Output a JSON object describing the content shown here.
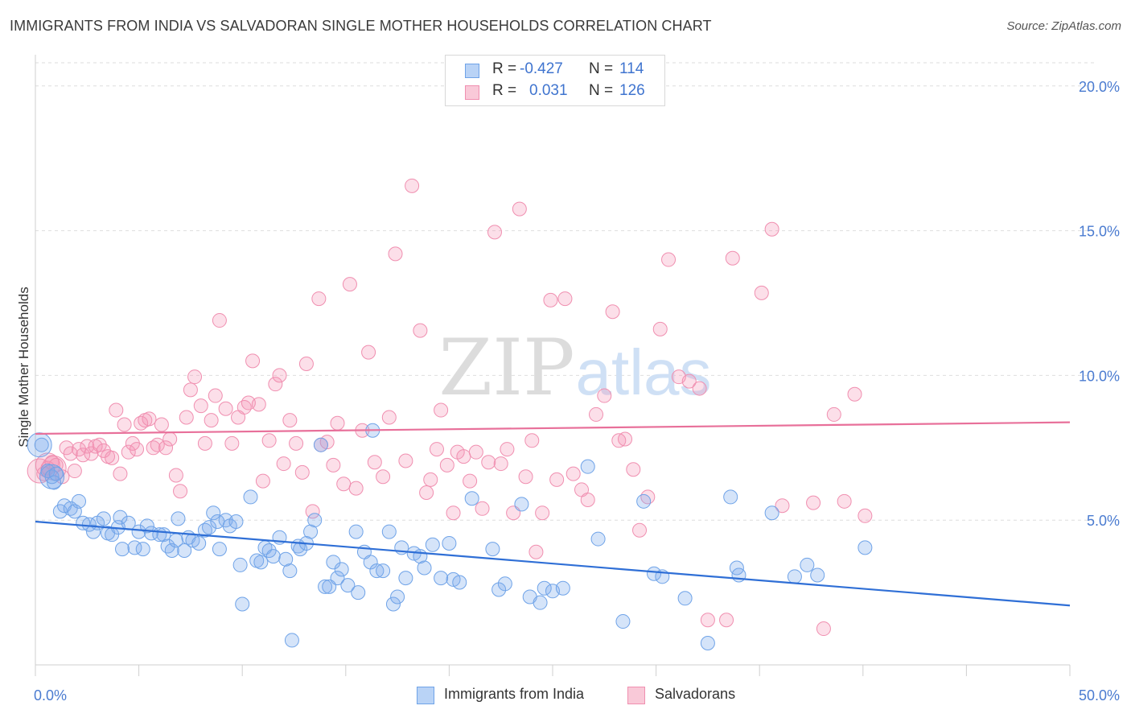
{
  "title": "IMMIGRANTS FROM INDIA VS SALVADORAN SINGLE MOTHER HOUSEHOLDS CORRELATION CHART",
  "source": "Source: ZipAtlas.com",
  "watermark": {
    "zip": "ZIP",
    "atlas": "atlas"
  },
  "legend": {
    "r_label": "R =",
    "n_label": "N =",
    "rows": [
      {
        "r": "-0.427",
        "n": "114",
        "color": "#6fa3e8"
      },
      {
        "r": "0.031",
        "n": "126",
        "color": "#f08fb0"
      }
    ]
  },
  "chart_data": {
    "type": "scatter",
    "ylabel": "Single Mother Households",
    "xlim": [
      0,
      50
    ],
    "ylim": [
      0,
      20.8
    ],
    "x_tick_labels": [
      "0.0%",
      "50.0%"
    ],
    "y_ticks": [
      5,
      10,
      15,
      20
    ],
    "y_tick_labels": [
      "5.0%",
      "10.0%",
      "15.0%",
      "20.0%"
    ],
    "grid": "horizontal dashed",
    "legend_position": "top-center",
    "series": [
      {
        "name": "Immigrants from India",
        "color": "#6fa3e8",
        "trend": {
          "x": [
            0,
            50
          ],
          "y": [
            4.95,
            2.05
          ]
        },
        "points": [
          [
            0.3,
            7.6
          ],
          [
            0.6,
            6.7
          ],
          [
            0.8,
            6.5
          ],
          [
            0.9,
            6.3
          ],
          [
            1,
            6.6
          ],
          [
            1.2,
            5.3
          ],
          [
            1.4,
            5.5
          ],
          [
            1.7,
            5.4
          ],
          [
            1.9,
            5.3
          ],
          [
            2.1,
            5.65
          ],
          [
            2.3,
            4.9
          ],
          [
            2.6,
            4.85
          ],
          [
            2.8,
            4.6
          ],
          [
            3,
            4.9
          ],
          [
            3.3,
            5.05
          ],
          [
            3.5,
            4.55
          ],
          [
            3.7,
            4.5
          ],
          [
            4,
            4.75
          ],
          [
            4.1,
            5.1
          ],
          [
            4.2,
            4.0
          ],
          [
            4.5,
            4.9
          ],
          [
            4.8,
            4.05
          ],
          [
            5,
            4.6
          ],
          [
            5.2,
            4.0
          ],
          [
            5.4,
            4.8
          ],
          [
            5.6,
            4.55
          ],
          [
            6,
            4.5
          ],
          [
            6.2,
            4.5
          ],
          [
            6.4,
            4.1
          ],
          [
            6.6,
            3.95
          ],
          [
            6.8,
            4.3
          ],
          [
            6.9,
            5.05
          ],
          [
            7.2,
            3.95
          ],
          [
            7.4,
            4.4
          ],
          [
            7.6,
            4.3
          ],
          [
            7.9,
            4.2
          ],
          [
            8.2,
            4.65
          ],
          [
            8.4,
            4.75
          ],
          [
            8.6,
            5.25
          ],
          [
            8.8,
            4.95
          ],
          [
            8.9,
            4.0
          ],
          [
            9.2,
            5.0
          ],
          [
            9.4,
            4.8
          ],
          [
            9.7,
            4.95
          ],
          [
            9.9,
            3.45
          ],
          [
            10,
            2.1
          ],
          [
            10.4,
            5.8
          ],
          [
            10.7,
            3.6
          ],
          [
            10.9,
            3.55
          ],
          [
            11.1,
            4.05
          ],
          [
            11.3,
            3.95
          ],
          [
            11.5,
            3.75
          ],
          [
            11.8,
            4.4
          ],
          [
            12.1,
            3.65
          ],
          [
            12.3,
            3.25
          ],
          [
            12.4,
            0.85
          ],
          [
            12.7,
            4.1
          ],
          [
            12.8,
            4.0
          ],
          [
            13.1,
            4.2
          ],
          [
            13.3,
            4.6
          ],
          [
            13.5,
            5.0
          ],
          [
            13.8,
            7.6
          ],
          [
            14,
            2.7
          ],
          [
            14.2,
            2.7
          ],
          [
            14.4,
            3.55
          ],
          [
            14.6,
            3.0
          ],
          [
            14.8,
            3.3
          ],
          [
            15.1,
            2.75
          ],
          [
            15.5,
            4.6
          ],
          [
            15.6,
            2.5
          ],
          [
            15.9,
            3.9
          ],
          [
            16.2,
            3.55
          ],
          [
            16.3,
            8.1
          ],
          [
            16.5,
            3.25
          ],
          [
            16.8,
            3.25
          ],
          [
            17.1,
            4.6
          ],
          [
            17.3,
            2.1
          ],
          [
            17.5,
            2.35
          ],
          [
            17.7,
            4.05
          ],
          [
            17.9,
            3.0
          ],
          [
            18.3,
            3.85
          ],
          [
            18.6,
            3.75
          ],
          [
            18.8,
            3.35
          ],
          [
            19.2,
            4.15
          ],
          [
            19.6,
            3.0
          ],
          [
            20,
            4.2
          ],
          [
            20.2,
            2.95
          ],
          [
            20.5,
            2.85
          ],
          [
            21.1,
            5.75
          ],
          [
            22.1,
            4.0
          ],
          [
            22.4,
            2.6
          ],
          [
            22.7,
            2.8
          ],
          [
            23.5,
            5.55
          ],
          [
            23.9,
            2.35
          ],
          [
            24.4,
            2.15
          ],
          [
            24.6,
            2.65
          ],
          [
            25,
            2.55
          ],
          [
            25.5,
            2.65
          ],
          [
            26.7,
            6.85
          ],
          [
            27.2,
            4.35
          ],
          [
            28.4,
            1.5
          ],
          [
            29.4,
            5.65
          ],
          [
            29.9,
            3.15
          ],
          [
            30.3,
            3.05
          ],
          [
            31.4,
            2.3
          ],
          [
            32.5,
            0.75
          ],
          [
            33.6,
            5.8
          ],
          [
            33.9,
            3.35
          ],
          [
            34,
            3.1
          ],
          [
            35.6,
            5.25
          ],
          [
            36.7,
            3.05
          ],
          [
            37.3,
            3.45
          ],
          [
            37.8,
            3.1
          ],
          [
            40.1,
            4.05
          ]
        ],
        "large_points": [
          [
            0.2,
            7.6
          ],
          [
            0.8,
            6.5
          ]
        ]
      },
      {
        "name": "Salvadorans",
        "color": "#f08fb0",
        "trend": {
          "x": [
            0,
            50
          ],
          "y": [
            7.98,
            8.38
          ]
        },
        "points": [
          [
            0.4,
            6.6
          ],
          [
            0.6,
            6.8
          ],
          [
            0.8,
            7.0
          ],
          [
            1,
            6.9
          ],
          [
            1.3,
            6.5
          ],
          [
            1.5,
            7.5
          ],
          [
            1.7,
            7.3
          ],
          [
            1.9,
            6.7
          ],
          [
            2.1,
            7.45
          ],
          [
            2.3,
            7.25
          ],
          [
            2.5,
            7.55
          ],
          [
            2.7,
            7.3
          ],
          [
            2.9,
            7.55
          ],
          [
            3.1,
            7.6
          ],
          [
            3.3,
            7.4
          ],
          [
            3.5,
            7.2
          ],
          [
            3.7,
            7.15
          ],
          [
            3.9,
            8.8
          ],
          [
            4.1,
            6.6
          ],
          [
            4.3,
            8.3
          ],
          [
            4.5,
            7.35
          ],
          [
            4.7,
            7.65
          ],
          [
            4.9,
            7.45
          ],
          [
            5.1,
            8.35
          ],
          [
            5.3,
            8.45
          ],
          [
            5.5,
            8.5
          ],
          [
            5.7,
            7.5
          ],
          [
            5.9,
            7.6
          ],
          [
            6.1,
            8.3
          ],
          [
            6.3,
            7.5
          ],
          [
            6.5,
            7.8
          ],
          [
            6.8,
            6.55
          ],
          [
            7,
            6.0
          ],
          [
            7.3,
            8.55
          ],
          [
            7.5,
            9.5
          ],
          [
            7.7,
            9.95
          ],
          [
            8,
            8.95
          ],
          [
            8.2,
            7.65
          ],
          [
            8.5,
            8.45
          ],
          [
            8.7,
            9.3
          ],
          [
            8.9,
            11.9
          ],
          [
            9.2,
            8.85
          ],
          [
            9.5,
            7.65
          ],
          [
            9.8,
            8.55
          ],
          [
            10.1,
            8.9
          ],
          [
            10.3,
            9.05
          ],
          [
            10.5,
            10.5
          ],
          [
            10.8,
            9.0
          ],
          [
            11,
            6.35
          ],
          [
            11.3,
            7.75
          ],
          [
            11.6,
            9.7
          ],
          [
            11.8,
            10.0
          ],
          [
            12,
            6.95
          ],
          [
            12.3,
            8.45
          ],
          [
            12.6,
            7.65
          ],
          [
            12.9,
            6.65
          ],
          [
            13.1,
            10.4
          ],
          [
            13.4,
            5.3
          ],
          [
            13.7,
            12.65
          ],
          [
            13.8,
            7.6
          ],
          [
            14.1,
            7.7
          ],
          [
            14.4,
            6.9
          ],
          [
            14.6,
            8.35
          ],
          [
            14.9,
            6.25
          ],
          [
            15.2,
            13.15
          ],
          [
            15.5,
            6.1
          ],
          [
            15.8,
            8.1
          ],
          [
            16.1,
            10.8
          ],
          [
            16.4,
            7.0
          ],
          [
            16.8,
            6.5
          ],
          [
            17.1,
            8.55
          ],
          [
            17.4,
            14.2
          ],
          [
            17.9,
            7.05
          ],
          [
            18.2,
            16.55
          ],
          [
            18.6,
            11.55
          ],
          [
            18.9,
            5.95
          ],
          [
            19.1,
            6.4
          ],
          [
            19.4,
            7.45
          ],
          [
            19.6,
            8.8
          ],
          [
            19.9,
            6.9
          ],
          [
            20.2,
            5.25
          ],
          [
            20.4,
            7.35
          ],
          [
            20.7,
            7.2
          ],
          [
            21,
            6.35
          ],
          [
            21.3,
            7.35
          ],
          [
            21.6,
            5.4
          ],
          [
            21.9,
            7.0
          ],
          [
            22.2,
            14.95
          ],
          [
            22.5,
            6.95
          ],
          [
            22.8,
            7.45
          ],
          [
            23.1,
            5.25
          ],
          [
            23.4,
            15.75
          ],
          [
            23.7,
            6.5
          ],
          [
            24,
            7.75
          ],
          [
            24.2,
            3.9
          ],
          [
            24.5,
            5.25
          ],
          [
            24.9,
            12.6
          ],
          [
            25.2,
            6.4
          ],
          [
            25.6,
            12.65
          ],
          [
            26,
            6.6
          ],
          [
            26.4,
            6.05
          ],
          [
            26.7,
            5.7
          ],
          [
            27.1,
            8.65
          ],
          [
            27.5,
            9.3
          ],
          [
            27.9,
            12.2
          ],
          [
            28.2,
            7.75
          ],
          [
            28.5,
            7.8
          ],
          [
            28.9,
            6.75
          ],
          [
            29.2,
            4.65
          ],
          [
            29.6,
            5.8
          ],
          [
            30.2,
            11.6
          ],
          [
            30.6,
            14.0
          ],
          [
            31.1,
            9.95
          ],
          [
            31.6,
            9.8
          ],
          [
            32.1,
            9.55
          ],
          [
            32.5,
            1.55
          ],
          [
            33.4,
            1.55
          ],
          [
            33.7,
            14.05
          ],
          [
            35.1,
            12.85
          ],
          [
            35.6,
            15.05
          ],
          [
            36.1,
            5.5
          ],
          [
            37.6,
            5.6
          ],
          [
            38.1,
            1.25
          ],
          [
            38.6,
            8.65
          ],
          [
            39.1,
            5.65
          ],
          [
            39.6,
            9.35
          ],
          [
            40.1,
            5.15
          ]
        ],
        "large_points": [
          [
            0.2,
            6.7
          ],
          [
            0.6,
            6.9
          ],
          [
            0.9,
            6.8
          ]
        ]
      }
    ]
  }
}
